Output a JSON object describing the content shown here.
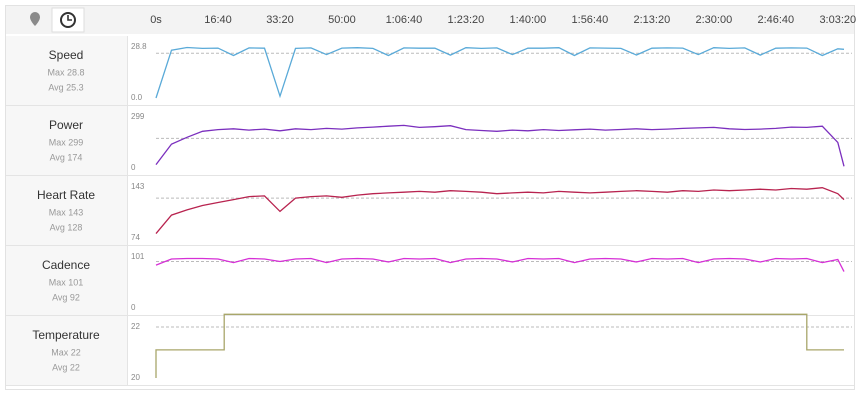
{
  "chart_data": [
    {
      "type": "line",
      "title": "Speed",
      "max_label": "Max 28.8",
      "avg_label": "Avg 25.3",
      "avg": 25.3,
      "color": "#5aaad8",
      "x": [
        0,
        250,
        500,
        750,
        1000,
        1250,
        1500,
        1750,
        2000,
        2250,
        2500,
        2750,
        3000,
        3250,
        3500,
        3750,
        4000,
        4250,
        4500,
        4750,
        5000,
        5250,
        5500,
        5750,
        6000,
        6250,
        6500,
        6750,
        7000,
        7250,
        7500,
        7750,
        8000,
        8250,
        8500,
        8750,
        9000,
        9250,
        9500,
        9750,
        10000,
        10250,
        10500,
        10750,
        11000,
        11100
      ],
      "values": [
        0,
        27,
        28.5,
        28,
        28.2,
        24,
        28.3,
        28.1,
        1,
        28,
        28.3,
        24.5,
        28.2,
        28.4,
        28,
        24,
        28.3,
        28.1,
        28.2,
        24.2,
        28.4,
        28,
        28.3,
        24.5,
        28.2,
        28.1,
        28.4,
        24,
        28.3,
        28.2,
        28,
        24.3,
        28.1,
        28.3,
        28.2,
        24.5,
        28.4,
        28,
        28.3,
        24.2,
        28.1,
        28.3,
        28.2,
        24,
        27.8,
        27.5
      ],
      "xlim": [
        0,
        11100
      ],
      "ylim": [
        0,
        28.8
      ],
      "yticks": [
        {
          "value": 0,
          "label": "0.0"
        },
        28.8
      ],
      "xticks": [
        {
          "value": 0,
          "label": "0s"
        },
        {
          "value": 1000,
          "label": "16:40"
        },
        {
          "value": 2000,
          "label": "33:20"
        },
        {
          "value": 3000,
          "label": "50:00"
        },
        {
          "value": 4000,
          "label": "1:06:40"
        },
        {
          "value": 5000,
          "label": "1:23:20"
        },
        {
          "value": 6000,
          "label": "1:40:00"
        },
        {
          "value": 7000,
          "label": "1:56:40"
        },
        {
          "value": 8000,
          "label": "2:13:20"
        },
        {
          "value": 9000,
          "label": "2:30:00"
        },
        {
          "value": 10000,
          "label": "2:46:40"
        },
        {
          "value": 11000,
          "label": "3:03:20"
        }
      ]
    },
    {
      "type": "line",
      "title": "Power",
      "max_label": "Max 299",
      "avg_label": "Avg 174",
      "avg": 174,
      "color": "#7b2fbe",
      "x": [
        0,
        250,
        500,
        750,
        1000,
        1250,
        1500,
        1750,
        2000,
        2250,
        2500,
        2750,
        3000,
        3250,
        3500,
        3750,
        4000,
        4250,
        4500,
        4750,
        5000,
        5250,
        5500,
        5750,
        6000,
        6250,
        6500,
        6750,
        7000,
        7250,
        7500,
        7750,
        8000,
        8250,
        8500,
        8750,
        9000,
        9250,
        9500,
        9750,
        10000,
        10250,
        10500,
        10750,
        11000,
        11100
      ],
      "values": [
        20,
        140,
        180,
        215,
        225,
        230,
        222,
        228,
        218,
        230,
        225,
        232,
        228,
        235,
        240,
        245,
        250,
        238,
        242,
        248,
        225,
        220,
        215,
        222,
        218,
        225,
        220,
        224,
        228,
        222,
        226,
        230,
        225,
        228,
        232,
        235,
        238,
        230,
        226,
        228,
        232,
        240,
        238,
        245,
        150,
        10
      ],
      "xlim": [
        0,
        11100
      ],
      "ylim": [
        0,
        299
      ],
      "yticks": [
        0,
        299
      ]
    },
    {
      "type": "line",
      "title": "Heart Rate",
      "max_label": "Max 143",
      "avg_label": "Avg 128",
      "avg": 128,
      "color": "#b8234f",
      "x": [
        0,
        250,
        500,
        750,
        1000,
        1250,
        1500,
        1750,
        2000,
        2250,
        2500,
        2750,
        3000,
        3250,
        3500,
        3750,
        4000,
        4250,
        4500,
        4750,
        5000,
        5250,
        5500,
        5750,
        6000,
        6250,
        6500,
        6750,
        7000,
        7250,
        7500,
        7750,
        8000,
        8250,
        8500,
        8750,
        9000,
        9250,
        9500,
        9750,
        10000,
        10250,
        10500,
        10750,
        11000,
        11100
      ],
      "values": [
        80,
        105,
        112,
        118,
        122,
        126,
        130,
        131,
        110,
        128,
        130,
        131,
        129,
        132,
        134,
        135,
        136,
        137,
        136,
        138,
        137,
        136,
        134,
        135,
        136,
        135,
        137,
        136,
        135,
        136,
        137,
        138,
        137,
        136,
        138,
        137,
        139,
        138,
        139,
        140,
        139,
        141,
        140,
        142,
        134,
        126
      ],
      "xlim": [
        0,
        11100
      ],
      "ylim": [
        74,
        143
      ],
      "yticks": [
        74,
        143
      ]
    },
    {
      "type": "line",
      "title": "Cadence",
      "max_label": "Max 101",
      "avg_label": "Avg 92",
      "avg": 92,
      "color": "#d62fd6",
      "x": [
        0,
        250,
        500,
        750,
        1000,
        1250,
        1500,
        1750,
        2000,
        2250,
        2500,
        2750,
        3000,
        3250,
        3500,
        3750,
        4000,
        4250,
        4500,
        4750,
        5000,
        5250,
        5500,
        5750,
        6000,
        6250,
        6500,
        6750,
        7000,
        7250,
        7500,
        7750,
        8000,
        8250,
        8500,
        8750,
        9000,
        9250,
        9500,
        9750,
        10000,
        10250,
        10500,
        10750,
        11000,
        11100
      ],
      "values": [
        85,
        97,
        98,
        98,
        97,
        90,
        98,
        97,
        92,
        97,
        98,
        90,
        97,
        98,
        97,
        91,
        98,
        97,
        98,
        90,
        97,
        98,
        97,
        91,
        98,
        97,
        98,
        90,
        97,
        98,
        97,
        91,
        98,
        97,
        98,
        90,
        97,
        98,
        97,
        91,
        98,
        97,
        98,
        90,
        96,
        72
      ],
      "xlim": [
        0,
        11100
      ],
      "ylim": [
        0,
        101
      ],
      "yticks": [
        0,
        101
      ]
    },
    {
      "type": "line",
      "title": "Temperature",
      "max_label": "Max 22",
      "avg_label": "Avg 22",
      "avg": 22,
      "color": "#a8a66a",
      "x": [
        0,
        0,
        1100,
        1100,
        10500,
        10500,
        11100
      ],
      "values": [
        20,
        21.1,
        21.1,
        22.5,
        22.5,
        21.1,
        21.1
      ],
      "xlim": [
        0,
        11100
      ],
      "ylim": [
        20,
        22
      ],
      "yticks": [
        20,
        22
      ]
    }
  ]
}
